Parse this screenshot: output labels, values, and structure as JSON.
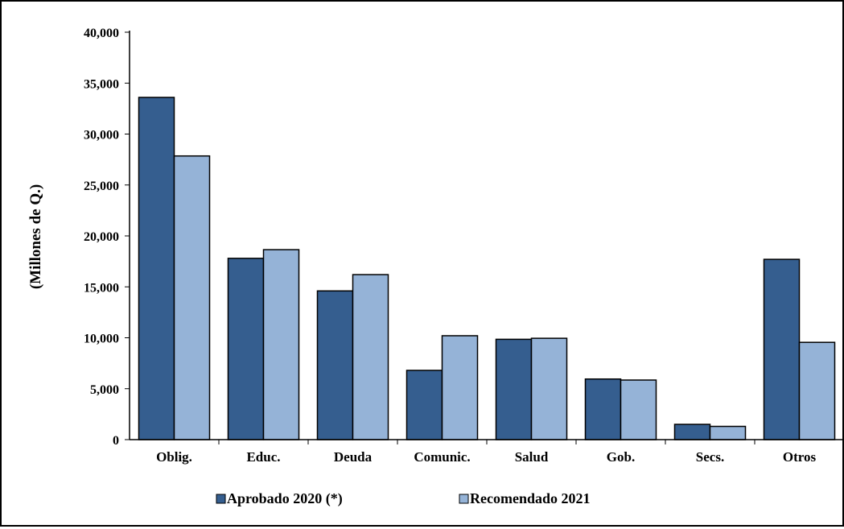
{
  "chart_data": {
    "type": "bar",
    "categories": [
      "Oblig.",
      "Educ.",
      "Deuda",
      "Comunic.",
      "Salud",
      "Gob.",
      "Secs.",
      "Otros"
    ],
    "series": [
      {
        "name": "Aprobado 2020 (*)",
        "values": [
          33600,
          17800,
          14600,
          6800,
          9850,
          5950,
          1500,
          17700
        ],
        "color": "#355e8f"
      },
      {
        "name": "Recomendado 2021",
        "values": [
          27850,
          18650,
          16200,
          10200,
          9950,
          5850,
          1300,
          9550
        ],
        "color": "#95b3d7"
      }
    ],
    "ylabel": "(Millones de Q.)",
    "xlabel": "",
    "ylim": [
      0,
      40000
    ],
    "yticks": [
      "0",
      "5,000",
      "10,000",
      "15,000",
      "20,000",
      "25,000",
      "30,000",
      "35,000",
      "40,000"
    ],
    "grid": false,
    "legend_position": "bottom"
  }
}
